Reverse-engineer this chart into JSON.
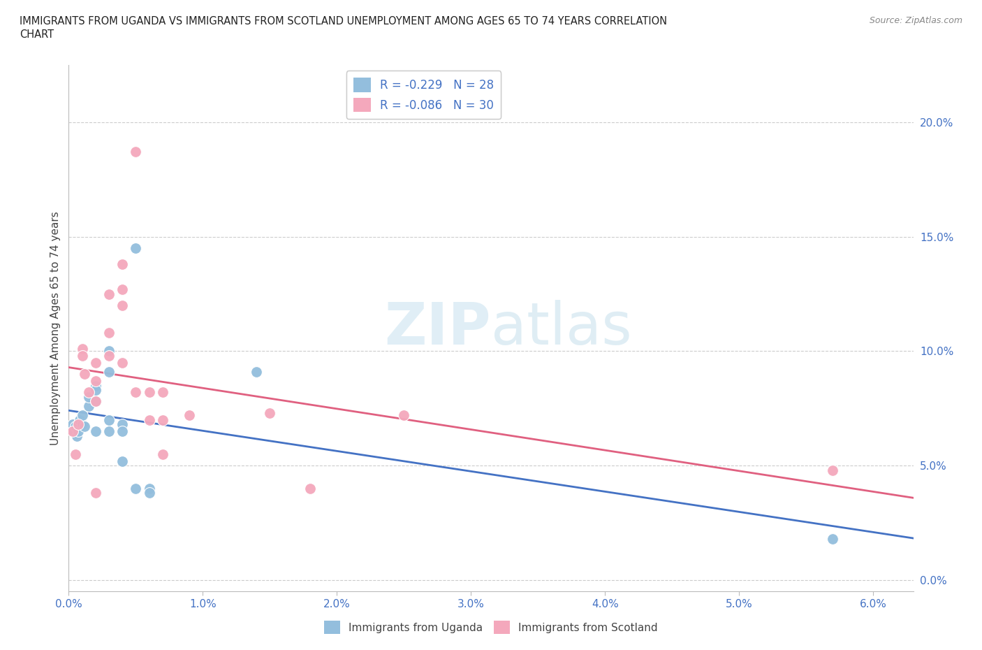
{
  "title_line1": "IMMIGRANTS FROM UGANDA VS IMMIGRANTS FROM SCOTLAND UNEMPLOYMENT AMONG AGES 65 TO 74 YEARS CORRELATION",
  "title_line2": "CHART",
  "source": "Source: ZipAtlas.com",
  "xlim": [
    0.0,
    0.063
  ],
  "ylim": [
    -0.005,
    0.225
  ],
  "x_tick_vals": [
    0.0,
    0.01,
    0.02,
    0.03,
    0.04,
    0.05,
    0.06
  ],
  "y_tick_vals": [
    0.0,
    0.05,
    0.1,
    0.15,
    0.2
  ],
  "legend_entries": [
    {
      "label": "R = -0.229   N = 28",
      "color": "#a8c8e8"
    },
    {
      "label": "R = -0.086   N = 30",
      "color": "#f5b8c8"
    }
  ],
  "uganda_x": [
    0.0003,
    0.0004,
    0.0005,
    0.0006,
    0.0007,
    0.0008,
    0.001,
    0.001,
    0.0012,
    0.0015,
    0.0015,
    0.002,
    0.002,
    0.002,
    0.002,
    0.003,
    0.003,
    0.003,
    0.003,
    0.004,
    0.004,
    0.004,
    0.005,
    0.005,
    0.006,
    0.006,
    0.014,
    0.057
  ],
  "uganda_y": [
    0.068,
    0.065,
    0.067,
    0.063,
    0.065,
    0.07,
    0.068,
    0.072,
    0.067,
    0.076,
    0.08,
    0.085,
    0.083,
    0.078,
    0.065,
    0.1,
    0.091,
    0.07,
    0.065,
    0.068,
    0.065,
    0.052,
    0.145,
    0.04,
    0.04,
    0.038,
    0.091,
    0.018
  ],
  "scotland_x": [
    0.0003,
    0.0005,
    0.0007,
    0.001,
    0.001,
    0.0012,
    0.0015,
    0.002,
    0.002,
    0.002,
    0.003,
    0.003,
    0.003,
    0.004,
    0.004,
    0.004,
    0.004,
    0.005,
    0.005,
    0.006,
    0.006,
    0.007,
    0.007,
    0.007,
    0.009,
    0.015,
    0.018,
    0.025,
    0.057,
    0.002
  ],
  "scotland_y": [
    0.065,
    0.055,
    0.068,
    0.101,
    0.098,
    0.09,
    0.082,
    0.095,
    0.087,
    0.078,
    0.125,
    0.108,
    0.098,
    0.138,
    0.127,
    0.12,
    0.095,
    0.187,
    0.082,
    0.082,
    0.07,
    0.082,
    0.07,
    0.055,
    0.072,
    0.073,
    0.04,
    0.072,
    0.048,
    0.038
  ],
  "uganda_color": "#93bedd",
  "scotland_color": "#f4a8bc",
  "uganda_line_color": "#4472c4",
  "scotland_line_color": "#e06080",
  "watermark_color": "#cce4f0",
  "ylabel": "Unemployment Among Ages 65 to 74 years",
  "bottom_legend": [
    "Immigrants from Uganda",
    "Immigrants from Scotland"
  ]
}
